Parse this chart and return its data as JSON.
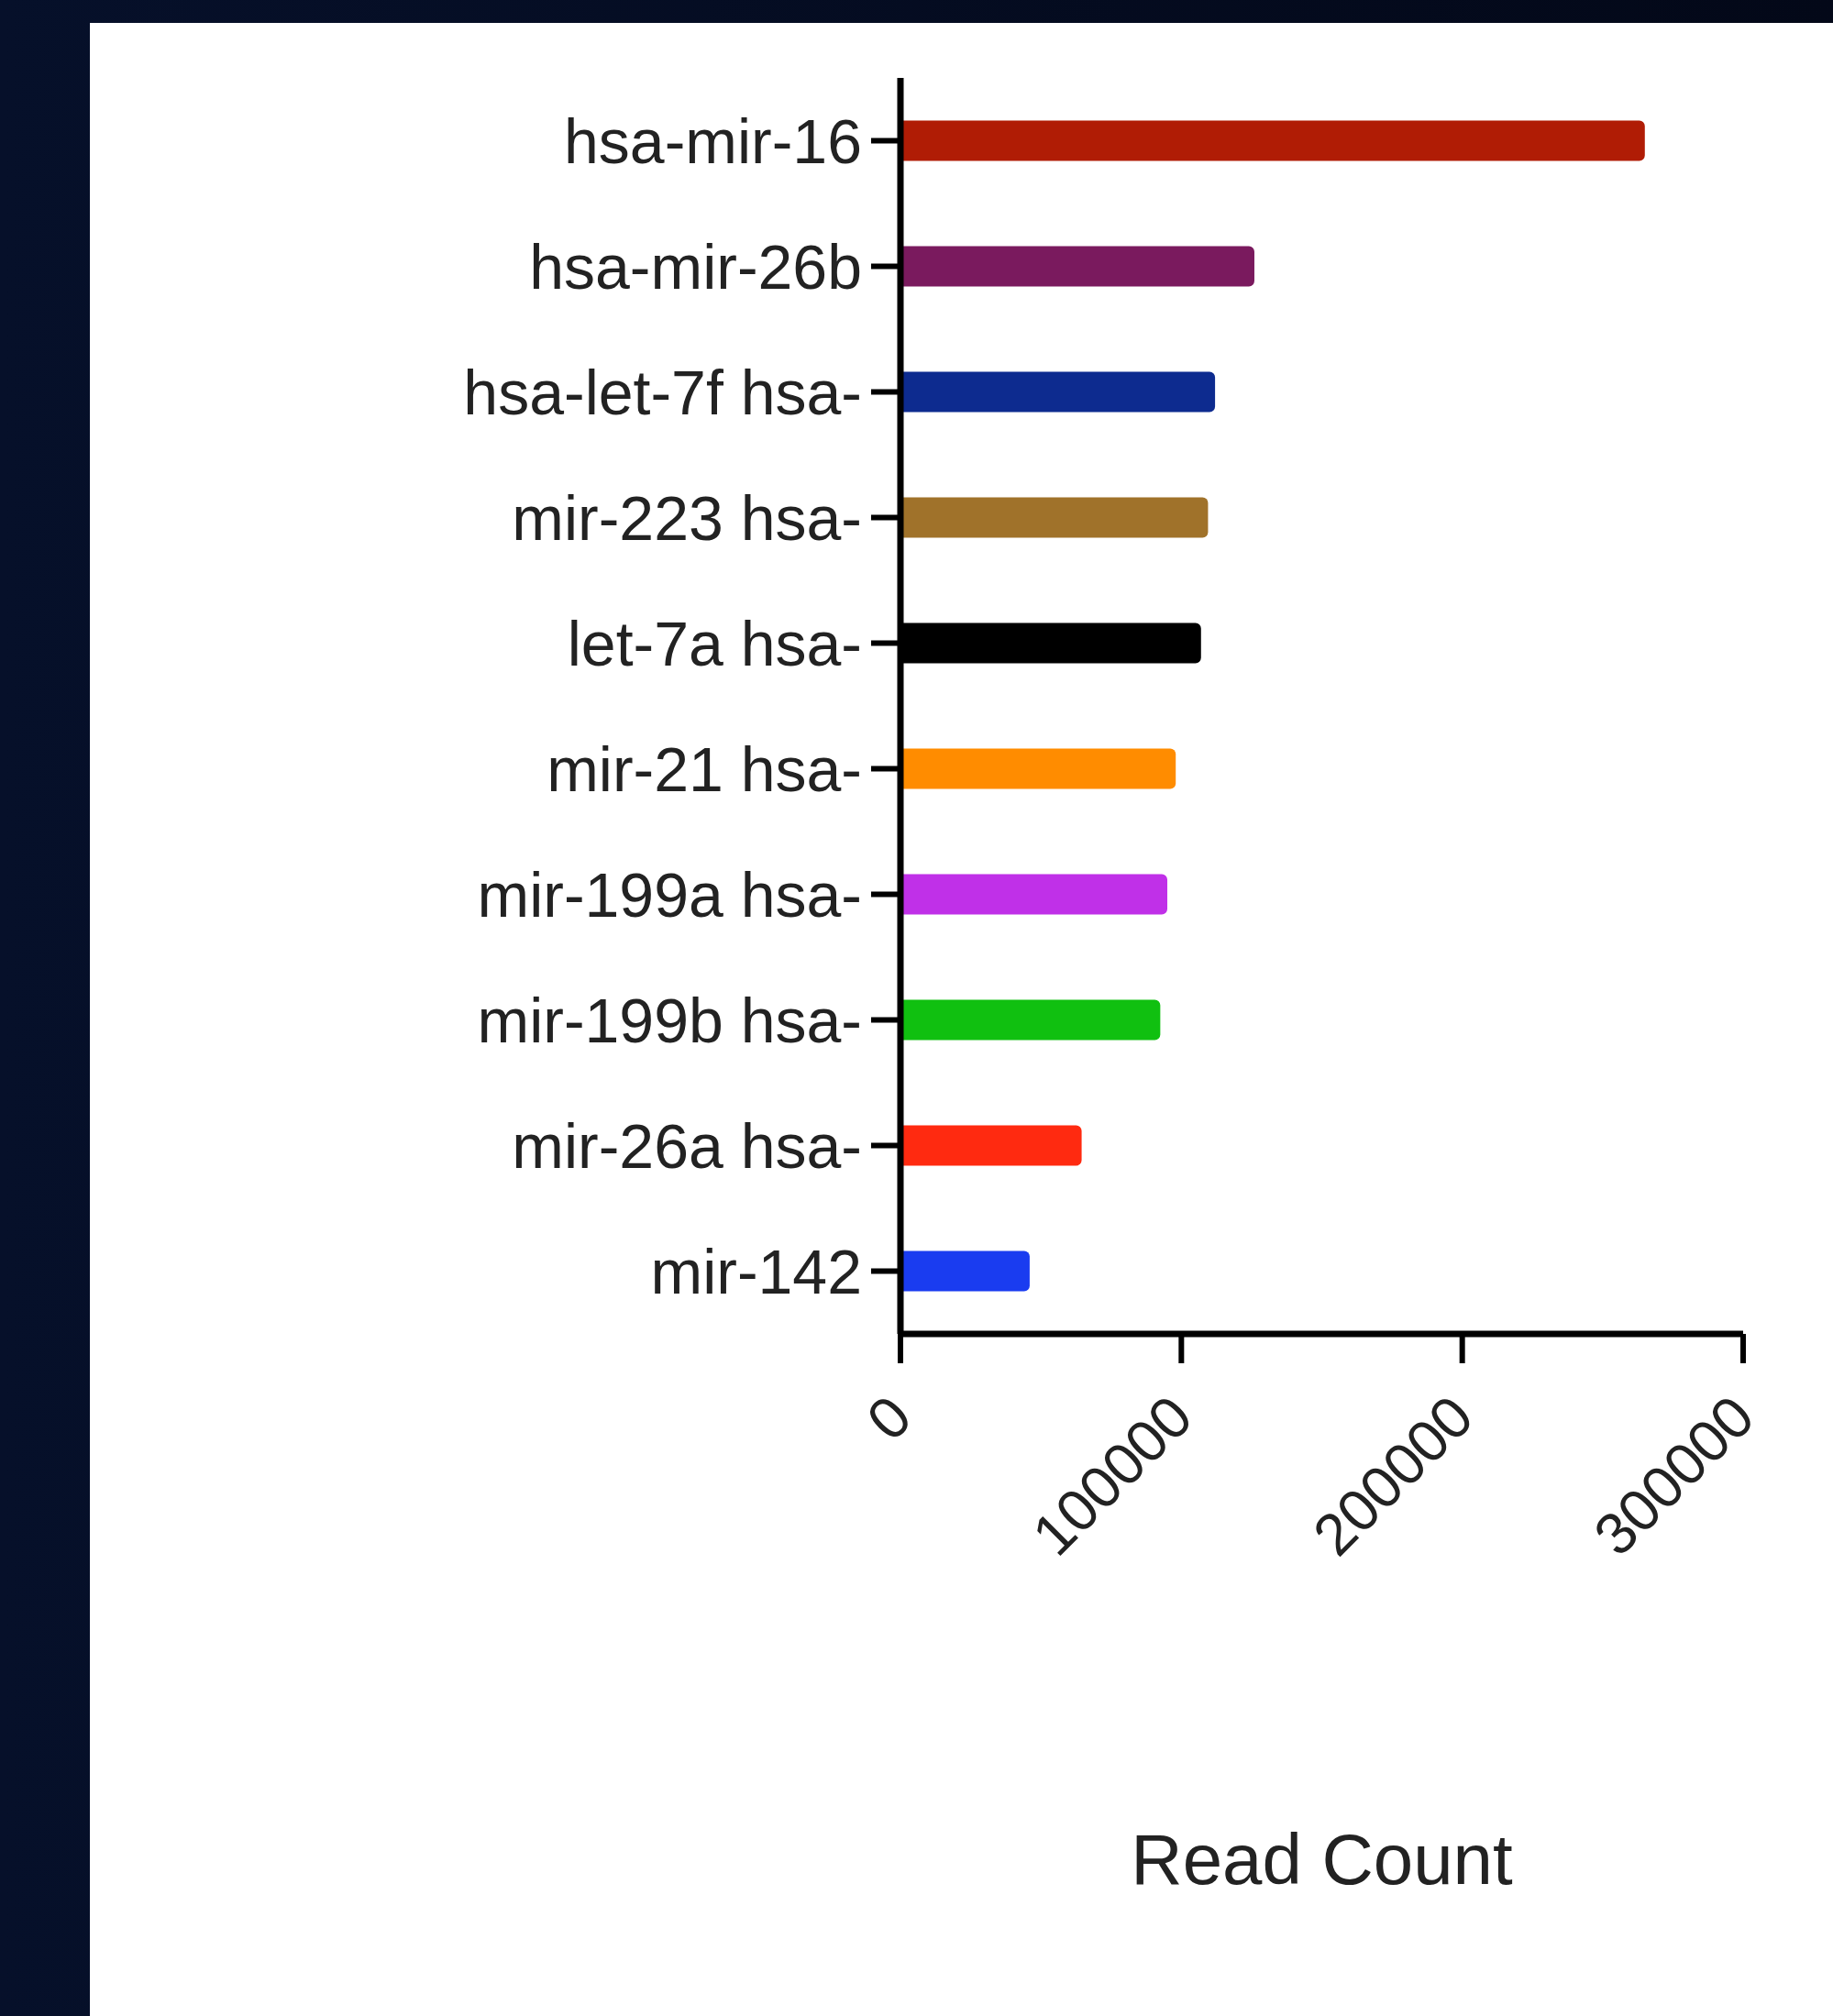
{
  "chart_data": {
    "type": "bar",
    "orientation": "horizontal",
    "xlabel": "Read Count",
    "categories": [
      "hsa-mir-16",
      "hsa-mir-26b",
      "hsa-let-7f hsa-",
      "mir-223 hsa-",
      "let-7a hsa-",
      "mir-21 hsa-",
      "mir-199a hsa-",
      "mir-199b hsa-",
      "mir-26a hsa-",
      "mir-142"
    ],
    "values": [
      265000,
      126000,
      112000,
      109500,
      107000,
      98000,
      95000,
      92500,
      64500,
      46000
    ],
    "colors": [
      "#b01c05",
      "#7a1a5e",
      "#0d2b8f",
      "#a0722a",
      "#000000",
      "#ff8c00",
      "#c030e8",
      "#10c010",
      "#ff2a10",
      "#1a3cf0"
    ],
    "xlim": [
      0,
      300000
    ],
    "xticks": [
      0,
      100000,
      200000,
      300000
    ],
    "grid": false,
    "legend": false
  }
}
